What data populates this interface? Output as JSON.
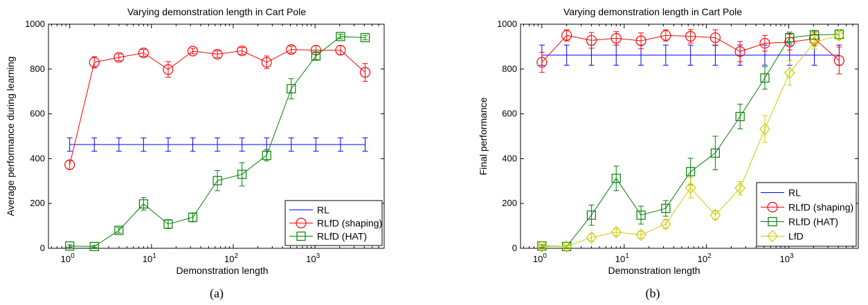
{
  "charts": [
    {
      "title": "Varying demonstration length in Cart Pole",
      "xlabel": "Demonstration length",
      "ylabel": "Average performance during learning",
      "caption": "(a)",
      "yticks": [
        "0",
        "200",
        "400",
        "600",
        "800",
        "1000"
      ]
    },
    {
      "title": "Varying demonstration length in Cart Pole",
      "xlabel": "Demonstration length",
      "ylabel": "Final performance",
      "caption": "(b)",
      "yticks": [
        "0",
        "200",
        "400",
        "600",
        "800",
        "1000"
      ]
    }
  ],
  "chart_data": [
    {
      "type": "line",
      "title": "Varying demonstration length in Cart Pole",
      "xlabel": "Demonstration length",
      "ylabel": "Average performance during learning",
      "xscale": "log",
      "xlim": [
        0.55,
        7000
      ],
      "ylim": [
        0,
        1000
      ],
      "xticks": [
        1,
        10,
        100,
        1000
      ],
      "yticks": [
        0,
        200,
        400,
        600,
        800,
        1000
      ],
      "legend_position": "bottom-right",
      "x": [
        1,
        2,
        4,
        8,
        16,
        32,
        64,
        128,
        256,
        512,
        1024,
        2048,
        4096
      ],
      "series": [
        {
          "name": "RL",
          "color": "#0000ff",
          "marker": "none",
          "values": [
            463,
            463,
            463,
            463,
            463,
            463,
            463,
            463,
            463,
            463,
            463,
            463,
            463
          ],
          "errors": [
            30,
            30,
            30,
            30,
            30,
            30,
            30,
            30,
            30,
            30,
            30,
            30,
            30
          ]
        },
        {
          "name": "RLfD (shaping)",
          "color": "#ff0000",
          "marker": "circle",
          "values": [
            373,
            830,
            852,
            872,
            798,
            880,
            866,
            881,
            830,
            887,
            884,
            884,
            785
          ],
          "errors": [
            20,
            25,
            15,
            15,
            35,
            12,
            15,
            15,
            28,
            15,
            20,
            20,
            40
          ]
        },
        {
          "name": "RLfD (HAT)",
          "color": "#008000",
          "marker": "square",
          "values": [
            10,
            8,
            80,
            198,
            108,
            138,
            302,
            330,
            415,
            712,
            858,
            945,
            940
          ],
          "errors": [
            5,
            5,
            12,
            28,
            20,
            20,
            45,
            52,
            25,
            45,
            15,
            10,
            10
          ]
        }
      ]
    },
    {
      "type": "line",
      "title": "Varying demonstration length in Cart Pole",
      "xlabel": "Demonstration length",
      "ylabel": "Final performance",
      "xscale": "log",
      "xlim": [
        0.55,
        7000
      ],
      "ylim": [
        0,
        1000
      ],
      "xticks": [
        1,
        10,
        100,
        1000
      ],
      "yticks": [
        0,
        200,
        400,
        600,
        800,
        1000
      ],
      "legend_position": "bottom-right",
      "x": [
        1,
        2,
        4,
        8,
        16,
        32,
        64,
        128,
        256,
        512,
        1024,
        2048,
        4096
      ],
      "series": [
        {
          "name": "RL",
          "color": "#0000ff",
          "marker": "none",
          "values": [
            862,
            862,
            862,
            862,
            862,
            862,
            862,
            862,
            862,
            862,
            862,
            862,
            862
          ],
          "errors": [
            45,
            45,
            45,
            45,
            45,
            45,
            45,
            45,
            45,
            45,
            45,
            45,
            45
          ]
        },
        {
          "name": "RLfD (shaping)",
          "color": "#ff0000",
          "marker": "circle",
          "values": [
            830,
            950,
            928,
            937,
            926,
            950,
            946,
            940,
            878,
            915,
            920,
            935,
            838
          ],
          "errors": [
            45,
            25,
            35,
            30,
            35,
            25,
            30,
            35,
            45,
            35,
            35,
            30,
            60
          ]
        },
        {
          "name": "RLfD (HAT)",
          "color": "#008000",
          "marker": "square",
          "values": [
            10,
            8,
            148,
            312,
            148,
            178,
            342,
            425,
            588,
            760,
            940,
            952,
            955
          ],
          "errors": [
            5,
            5,
            45,
            55,
            40,
            35,
            60,
            75,
            55,
            50,
            25,
            20,
            20
          ]
        },
        {
          "name": "LfD",
          "color": "#cccc00",
          "marker": "diamond",
          "values": [
            8,
            8,
            48,
            72,
            60,
            108,
            270,
            148,
            268,
            532,
            783,
            920,
            950
          ],
          "errors": [
            5,
            5,
            15,
            15,
            15,
            20,
            45,
            20,
            30,
            60,
            55,
            30,
            20
          ]
        }
      ]
    }
  ]
}
